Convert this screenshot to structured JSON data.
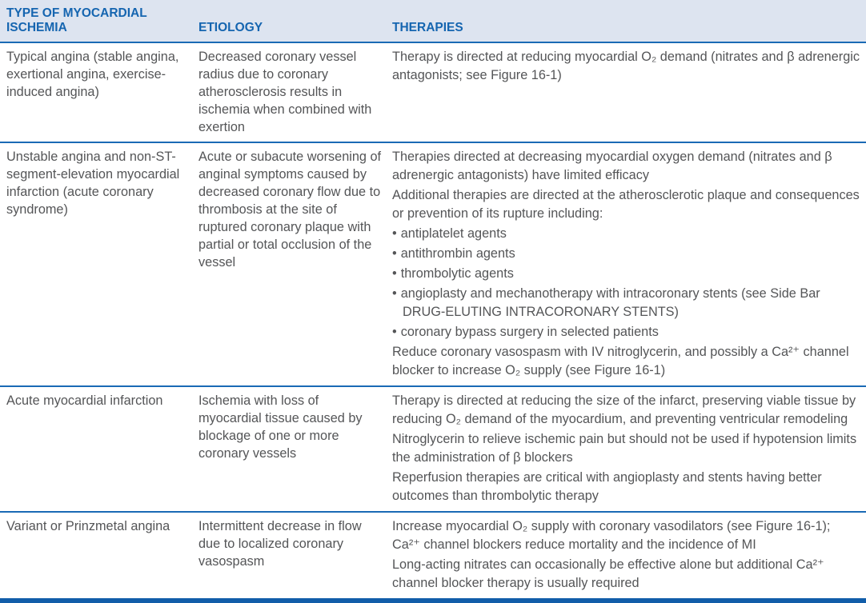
{
  "table": {
    "title_semantic": "Types of myocardial ischemia: etiology and therapies",
    "columns": [
      "TYPE OF MYOCARDIAL ISCHEMIA",
      "ETIOLOGY",
      "THERAPIES"
    ],
    "rows": [
      {
        "type": "Typical angina (stable angina, exertional angina, exercise-induced angina)",
        "etiology": "Decreased coronary vessel radius due to coronary atherosclerosis results in ischemia when combined with exertion",
        "therapies": [
          {
            "bullet": false,
            "text": "Therapy is directed at reducing myocardial O₂ demand (nitrates and β adrenergic antagonists; see Figure 16-1)"
          }
        ]
      },
      {
        "type": "Unstable angina and non-ST-segment-elevation myocardial infarction (acute coronary syndrome)",
        "etiology": "Acute or subacute worsening of anginal symptoms caused by decreased coronary flow due to thrombosis at the site of ruptured coronary plaque with partial or total occlusion of the vessel",
        "therapies": [
          {
            "bullet": false,
            "text": "Therapies directed at decreasing myocardial oxygen demand (nitrates and β adrenergic antagonists) have limited efficacy"
          },
          {
            "bullet": false,
            "text": "Additional therapies are directed at the atherosclerotic plaque and consequences or prevention of its rupture including:"
          },
          {
            "bullet": true,
            "text": "antiplatelet agents"
          },
          {
            "bullet": true,
            "text": "antithrombin agents"
          },
          {
            "bullet": true,
            "text": "thrombolytic agents"
          },
          {
            "bullet": true,
            "text": "angioplasty and mechanotherapy with intracoronary stents (see Side Bar DRUG-ELUTING INTRACORONARY STENTS)"
          },
          {
            "bullet": true,
            "text": "coronary bypass surgery in selected patients"
          },
          {
            "bullet": false,
            "text": "Reduce coronary vasospasm with IV nitroglycerin, and possibly a Ca²⁺ channel blocker to increase O₂ supply (see Figure 16-1)"
          }
        ]
      },
      {
        "type": "Acute myocardial infarction",
        "etiology": "Ischemia with loss of myocardial tissue caused by blockage of one or more coronary vessels",
        "therapies": [
          {
            "bullet": false,
            "text": "Therapy is directed at reducing the size of the infarct, preserving viable tissue by reducing O₂ demand of the myocardium, and preventing ventricular remodeling"
          },
          {
            "bullet": false,
            "text": "Nitroglycerin to relieve ischemic pain but should not be used if hypotension limits the administration of β blockers"
          },
          {
            "bullet": false,
            "text": "Reperfusion therapies are critical with angioplasty and stents having better outcomes than thrombolytic therapy"
          }
        ]
      },
      {
        "type": "Variant or Prinzmetal angina",
        "etiology": "Intermittent decrease in flow due to localized coronary vasospasm",
        "therapies": [
          {
            "bullet": false,
            "text": "Increase myocardial O₂ supply with coronary vasodilators (see Figure 16-1); Ca²⁺ channel blockers reduce mortality and the incidence of MI"
          },
          {
            "bullet": false,
            "text": "Long-acting nitrates can occasionally be effective alone but additional Ca²⁺ channel blocker therapy is usually required"
          }
        ]
      }
    ]
  },
  "glyphs": {
    "bullet": "•"
  },
  "colors": {
    "header_bg": "#dde4f0",
    "header_text": "#1565b0",
    "rule_blue": "#1a6ab5",
    "bottom_bar_blue": "#115da9",
    "body_text": "#545557"
  }
}
